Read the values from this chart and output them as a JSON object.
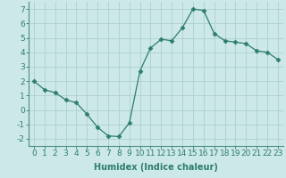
{
  "x": [
    0,
    1,
    2,
    3,
    4,
    5,
    6,
    7,
    8,
    9,
    10,
    11,
    12,
    13,
    14,
    15,
    16,
    17,
    18,
    19,
    20,
    21,
    22,
    23
  ],
  "y": [
    2.0,
    1.4,
    1.2,
    0.7,
    0.5,
    -0.3,
    -1.2,
    -1.8,
    -1.85,
    -0.9,
    2.7,
    4.3,
    4.9,
    4.8,
    5.7,
    7.0,
    6.9,
    5.3,
    4.8,
    4.7,
    4.6,
    4.1,
    4.0,
    3.5
  ],
  "line_color": "#2e7d6e",
  "marker": "D",
  "marker_size": 2.5,
  "bg_color": "#cce8e8",
  "grid_color": "#aed0d0",
  "xlabel": "Humidex (Indice chaleur)",
  "xlabel_fontsize": 7,
  "tick_fontsize": 6.5,
  "ylim": [
    -2.5,
    7.5
  ],
  "xlim": [
    -0.5,
    23.5
  ],
  "yticks": [
    -2,
    -1,
    0,
    1,
    2,
    3,
    4,
    5,
    6,
    7
  ],
  "xticks": [
    0,
    1,
    2,
    3,
    4,
    5,
    6,
    7,
    8,
    9,
    10,
    11,
    12,
    13,
    14,
    15,
    16,
    17,
    18,
    19,
    20,
    21,
    22,
    23
  ],
  "spine_color": "#4a9080",
  "tick_color": "#2e7d6e"
}
